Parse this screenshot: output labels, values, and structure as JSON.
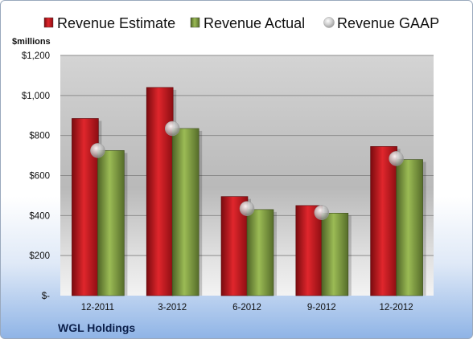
{
  "chart_data": {
    "type": "bar",
    "categories": [
      "12-2011",
      "3-2012",
      "6-2012",
      "9-2012",
      "12-2012"
    ],
    "series": [
      {
        "name": "Revenue Estimate",
        "kind": "bar",
        "color": "#c0151b",
        "values": [
          885,
          1040,
          495,
          450,
          745
        ]
      },
      {
        "name": "Revenue Actual",
        "kind": "bar",
        "color": "#7d9a3c",
        "values": [
          725,
          835,
          430,
          412,
          680
        ]
      },
      {
        "name": "Revenue GAAP",
        "kind": "marker",
        "color": "#b8b8b8",
        "values": [
          725,
          835,
          435,
          415,
          685
        ]
      }
    ],
    "y_unit_label": "$millions",
    "y_ticks": [
      {
        "value": 0,
        "label": "$-"
      },
      {
        "value": 200,
        "label": "$200"
      },
      {
        "value": 400,
        "label": "$400"
      },
      {
        "value": 600,
        "label": "$600"
      },
      {
        "value": 800,
        "label": "$800"
      },
      {
        "value": 1000,
        "label": "$1,000"
      },
      {
        "value": 1200,
        "label": "$1,200"
      }
    ],
    "ylim": [
      0,
      1200
    ],
    "grid": true,
    "legend_position": "top",
    "company": "WGL Holdings"
  }
}
